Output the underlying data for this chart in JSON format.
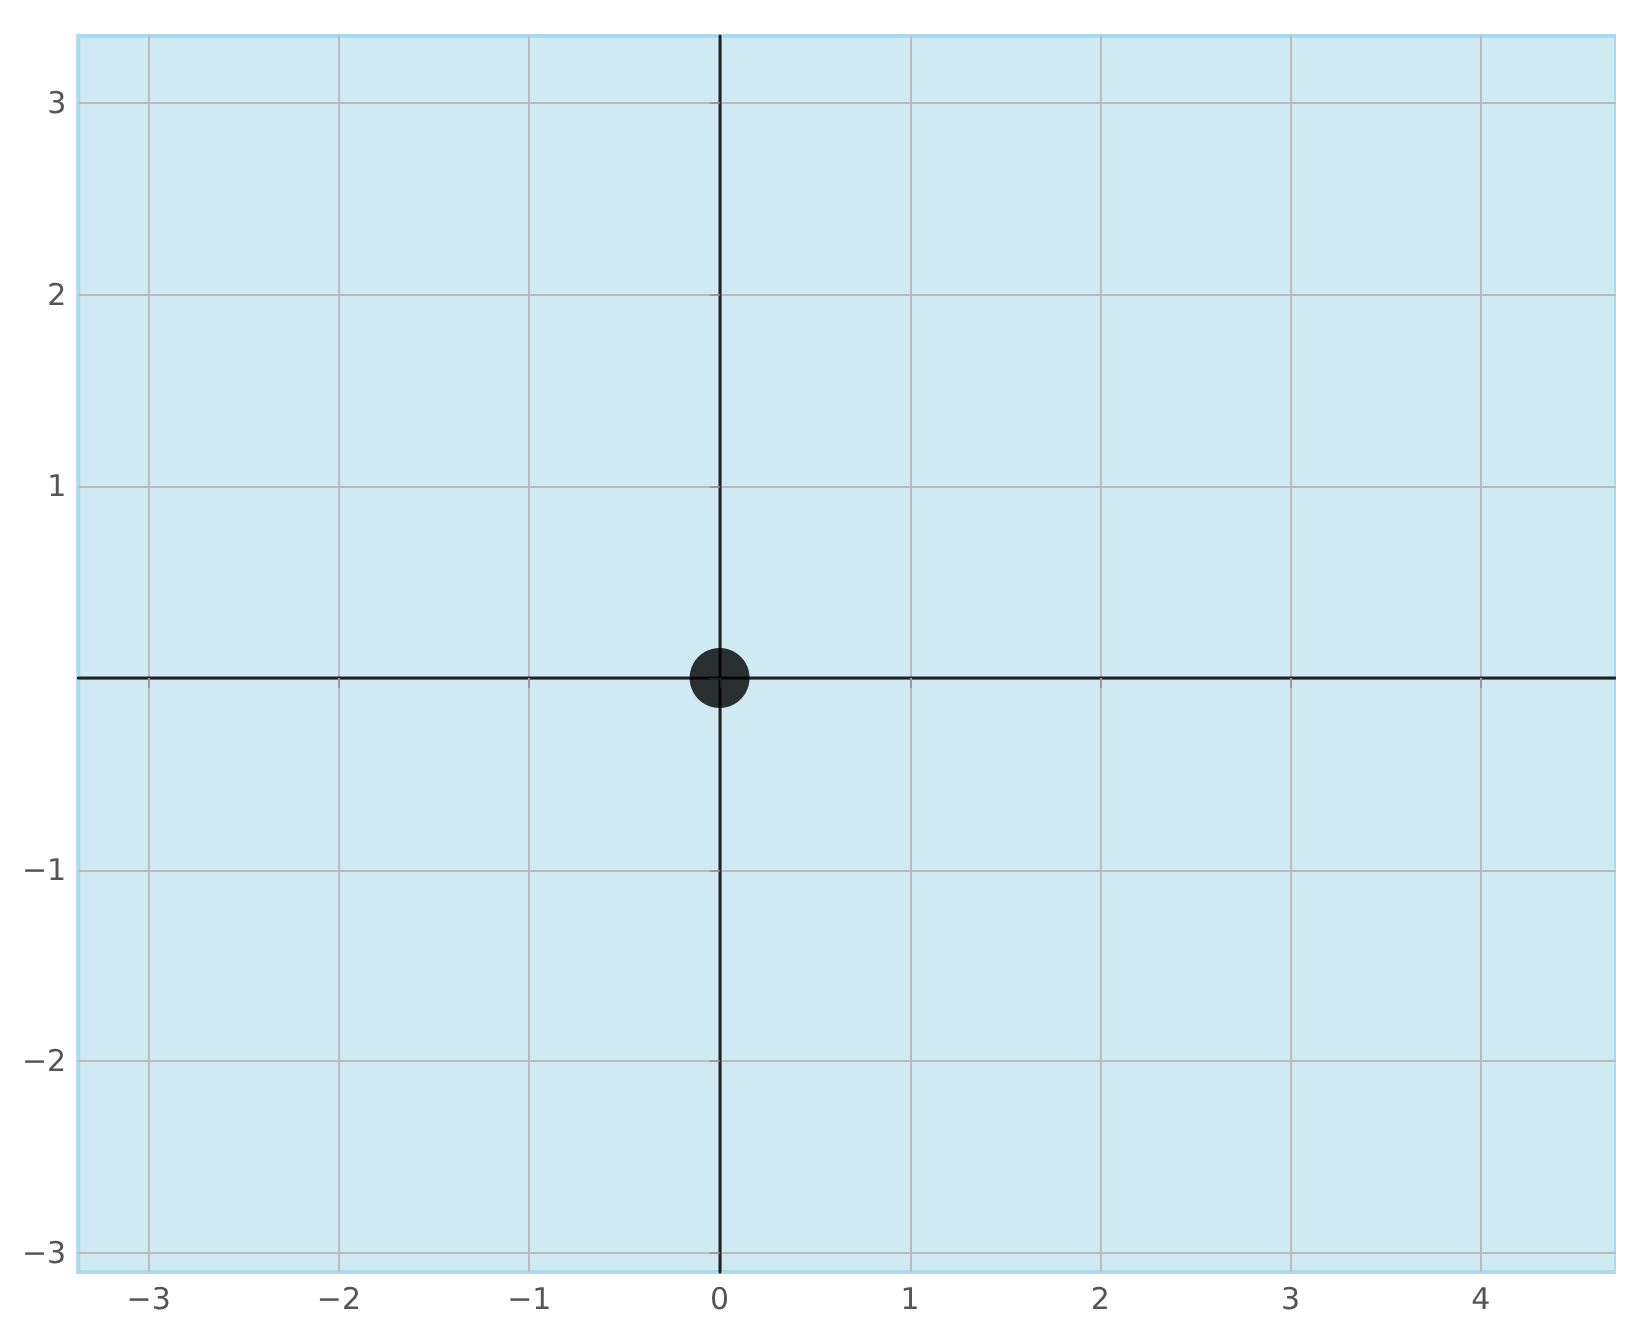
{
  "chart_data": {
    "type": "scatter",
    "x": [
      0
    ],
    "values": [
      0
    ],
    "color": "#000000",
    "marker": "circle",
    "xlim": [
      -3.37,
      4.71
    ],
    "ylim": [
      -3.1,
      3.35
    ],
    "xticks": [
      -3,
      -2,
      -1,
      0,
      1,
      2,
      3,
      4
    ],
    "yticks": [
      -3,
      -2,
      -1,
      {
        "value": 0,
        "label": null
      },
      1,
      2,
      3
    ],
    "grid": true
  }
}
